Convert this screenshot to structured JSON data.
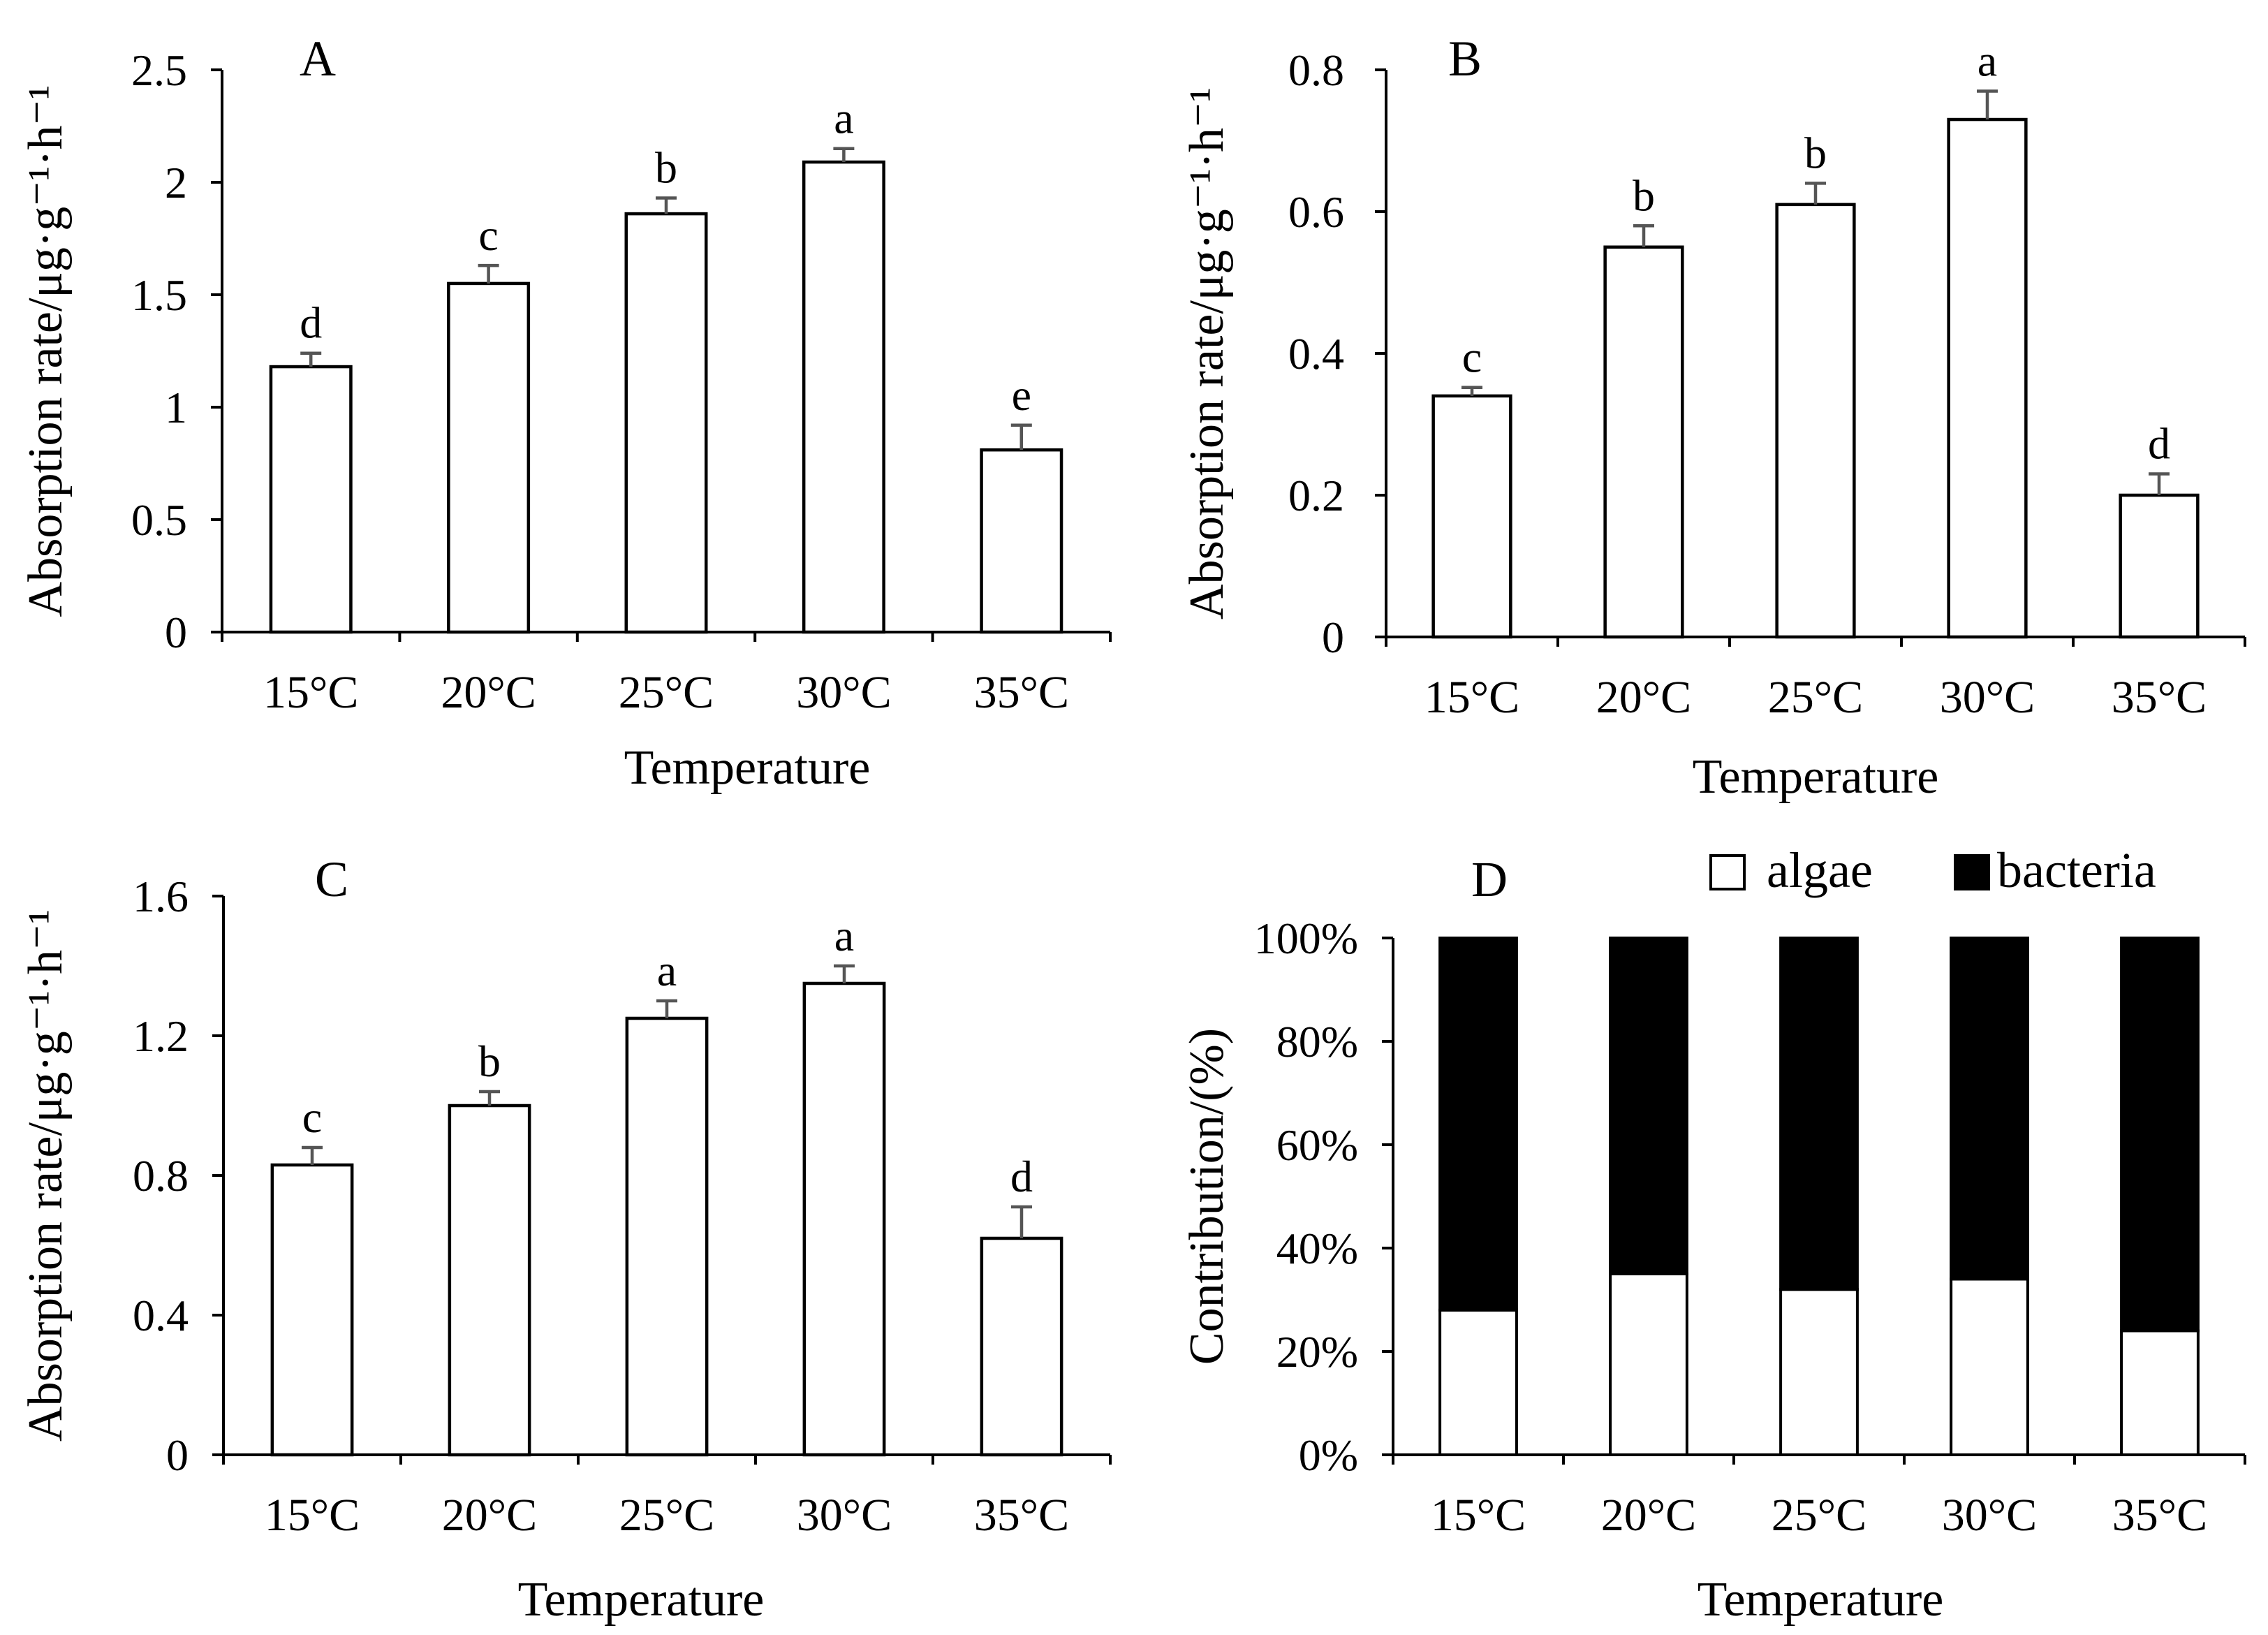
{
  "chart_data": [
    {
      "panel": "A",
      "type": "bar",
      "title": "A",
      "xlabel": "Temperature",
      "ylabel": "Absorption rate/μg·g⁻¹·h⁻¹",
      "categories": [
        "15°C",
        "20°C",
        "25°C",
        "30°C",
        "35°C"
      ],
      "values": [
        1.18,
        1.55,
        1.86,
        2.09,
        0.81
      ],
      "errors": [
        0.06,
        0.08,
        0.07,
        0.06,
        0.11
      ],
      "significance": [
        "d",
        "c",
        "b",
        "a",
        "e"
      ],
      "ylim": [
        0,
        2.5
      ],
      "yticks": [
        0,
        0.5,
        1,
        1.5,
        2,
        2.5
      ],
      "ytick_labels": [
        "0",
        "0.5",
        "1",
        "1.5",
        "2",
        "2.5"
      ]
    },
    {
      "panel": "B",
      "type": "bar",
      "title": "B",
      "xlabel": "Temperature",
      "ylabel": "Absorption rate/μg·g⁻¹·h⁻¹",
      "categories": [
        "15°C",
        "20°C",
        "25°C",
        "30°C",
        "35°C"
      ],
      "values": [
        0.34,
        0.55,
        0.61,
        0.73,
        0.2
      ],
      "errors": [
        0.012,
        0.03,
        0.03,
        0.04,
        0.03
      ],
      "significance": [
        "c",
        "b",
        "b",
        "a",
        "d"
      ],
      "ylim": [
        0,
        0.8
      ],
      "yticks": [
        0,
        0.2,
        0.4,
        0.6,
        0.8
      ],
      "ytick_labels": [
        "0",
        "0.2",
        "0.4",
        "0.6",
        "0.8"
      ]
    },
    {
      "panel": "C",
      "type": "bar",
      "title": "C",
      "xlabel": "Temperature",
      "ylabel": "Absorption rate/μg·g⁻¹·h⁻¹",
      "categories": [
        "15°C",
        "20°C",
        "25°C",
        "30°C",
        "35°C"
      ],
      "values": [
        0.83,
        1.0,
        1.25,
        1.35,
        0.62
      ],
      "errors": [
        0.05,
        0.04,
        0.05,
        0.05,
        0.09
      ],
      "significance": [
        "c",
        "b",
        "a",
        "a",
        "d"
      ],
      "ylim": [
        0,
        1.6
      ],
      "yticks": [
        0,
        0.4,
        0.8,
        1.2,
        1.6
      ],
      "ytick_labels": [
        "0",
        "0.4",
        "0.8",
        "1.2",
        "1.6"
      ]
    },
    {
      "panel": "D",
      "type": "bar",
      "stacked": true,
      "title": "D",
      "xlabel": "Temperature",
      "ylabel": "Contribution/(%)",
      "categories": [
        "15°C",
        "20°C",
        "25°C",
        "30°C",
        "35°C"
      ],
      "series": [
        {
          "name": "algae",
          "color": "#ffffff",
          "values": [
            28,
            35,
            32,
            34,
            24
          ]
        },
        {
          "name": "bacteria",
          "color": "#000000",
          "values": [
            72,
            65,
            68,
            66,
            76
          ]
        }
      ],
      "ylim": [
        0,
        100
      ],
      "yticks": [
        0,
        20,
        40,
        60,
        80,
        100
      ],
      "ytick_labels": [
        "0%",
        "20%",
        "40%",
        "60%",
        "80%",
        "100%"
      ],
      "legend_position": "top-right"
    }
  ]
}
